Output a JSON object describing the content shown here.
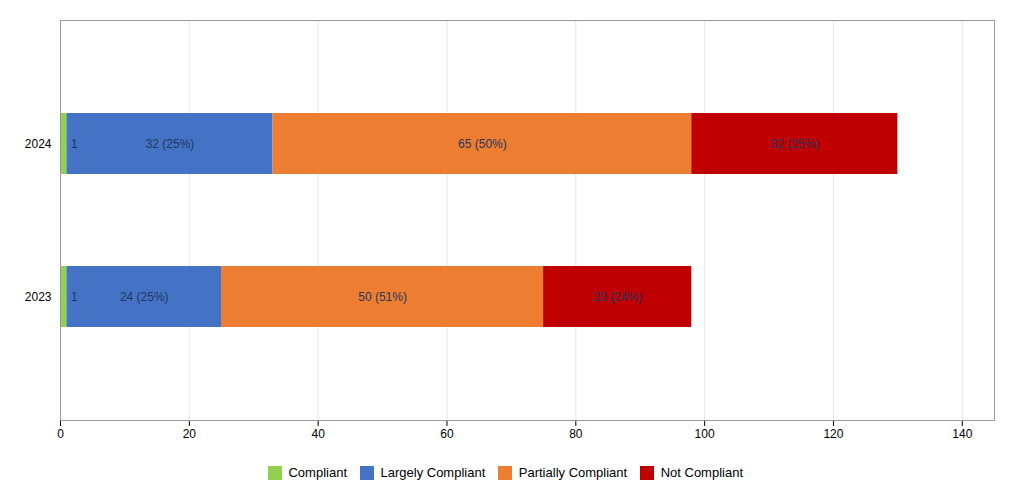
{
  "chart_data": {
    "type": "bar",
    "orientation": "horizontal",
    "stacked": true,
    "categories": [
      "2023",
      "2024"
    ],
    "series": [
      {
        "name": "Compliant",
        "color": "#92d050",
        "values": [
          1,
          1
        ],
        "value_labels": [
          "1",
          "1"
        ]
      },
      {
        "name": "Largely Compliant",
        "color": "#4472c4",
        "values": [
          24,
          32
        ],
        "value_labels": [
          "24 (25%)",
          "32 (25%)"
        ]
      },
      {
        "name": "Partially Compliant",
        "color": "#ed7d31",
        "values": [
          50,
          65
        ],
        "value_labels": [
          "50 (51%)",
          "65 (50%)"
        ]
      },
      {
        "name": "Not Compliant",
        "color": "#c00000",
        "values": [
          23,
          32
        ],
        "value_labels": [
          "23 (24%)",
          "32 (25%)"
        ]
      }
    ],
    "xlim": [
      0,
      145
    ],
    "xticks": [
      0,
      20,
      40,
      60,
      80,
      100,
      120,
      140
    ],
    "grid": true,
    "data_labels": true,
    "legend": "bottom"
  }
}
